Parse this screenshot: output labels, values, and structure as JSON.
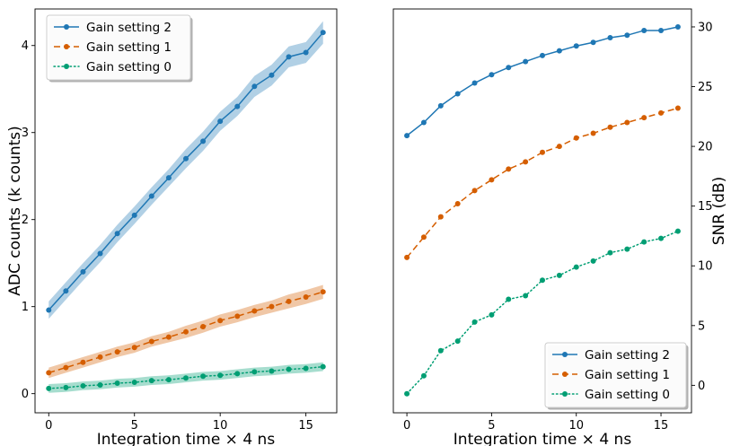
{
  "chart_data": [
    {
      "type": "line",
      "xlabel": "Integration time × 4 ns",
      "ylabel": "ADC counts (k counts)",
      "xlim": [
        -0.8,
        16.8
      ],
      "ylim": [
        -0.22,
        4.42
      ],
      "xticks": [
        0,
        5,
        10,
        15
      ],
      "yticks": [
        0,
        1,
        2,
        3,
        4
      ],
      "legend": "top-left",
      "grid": false,
      "x": [
        0,
        1,
        2,
        3,
        4,
        5,
        6,
        7,
        8,
        9,
        10,
        11,
        12,
        13,
        14,
        15,
        16
      ],
      "series": [
        {
          "name": "Gain setting 2",
          "color": "#1f77b4",
          "linestyle": "solid",
          "values": [
            0.96,
            1.18,
            1.4,
            1.61,
            1.84,
            2.05,
            2.27,
            2.48,
            2.7,
            2.9,
            3.13,
            3.3,
            3.53,
            3.66,
            3.87,
            3.92,
            4.15
          ],
          "band": [
            0.1,
            0.1,
            0.1,
            0.1,
            0.1,
            0.1,
            0.1,
            0.1,
            0.11,
            0.11,
            0.11,
            0.11,
            0.12,
            0.12,
            0.12,
            0.12,
            0.13
          ]
        },
        {
          "name": "Gain setting 1",
          "color": "#d55e00",
          "linestyle": "dashed",
          "values": [
            0.24,
            0.3,
            0.36,
            0.42,
            0.48,
            0.53,
            0.6,
            0.65,
            0.71,
            0.77,
            0.84,
            0.89,
            0.95,
            1.0,
            1.06,
            1.11,
            1.17
          ],
          "band": [
            0.06,
            0.06,
            0.06,
            0.06,
            0.06,
            0.06,
            0.06,
            0.06,
            0.07,
            0.07,
            0.07,
            0.07,
            0.07,
            0.07,
            0.08,
            0.08,
            0.08
          ]
        },
        {
          "name": "Gain setting 0",
          "color": "#009e73",
          "linestyle": "dotted",
          "values": [
            0.06,
            0.07,
            0.09,
            0.1,
            0.12,
            0.13,
            0.15,
            0.16,
            0.18,
            0.2,
            0.21,
            0.23,
            0.25,
            0.26,
            0.28,
            0.29,
            0.31
          ],
          "band": [
            0.05,
            0.05,
            0.05,
            0.05,
            0.05,
            0.05,
            0.05,
            0.05,
            0.05,
            0.05,
            0.05,
            0.05,
            0.05,
            0.05,
            0.05,
            0.05,
            0.05
          ]
        }
      ]
    },
    {
      "type": "line",
      "xlabel": "Integration time × 4 ns",
      "ylabel": "SNR (dB)",
      "xlim": [
        -0.8,
        16.8
      ],
      "ylim": [
        -2.3,
        31.5
      ],
      "xticks": [
        0,
        5,
        10,
        15
      ],
      "yticks": [
        0,
        5,
        10,
        15,
        20,
        25,
        30
      ],
      "legend": "bottom-right",
      "grid": false,
      "x": [
        0,
        1,
        2,
        3,
        4,
        5,
        6,
        7,
        8,
        9,
        10,
        11,
        12,
        13,
        14,
        15,
        16
      ],
      "series": [
        {
          "name": "Gain setting 2",
          "color": "#1f77b4",
          "linestyle": "solid",
          "values": [
            20.9,
            22.0,
            23.4,
            24.4,
            25.3,
            26.0,
            26.6,
            27.1,
            27.6,
            28.0,
            28.4,
            28.7,
            29.1,
            29.3,
            29.7,
            29.7,
            30.0
          ]
        },
        {
          "name": "Gain setting 1",
          "color": "#d55e00",
          "linestyle": "dashed",
          "values": [
            10.7,
            12.4,
            14.1,
            15.2,
            16.3,
            17.2,
            18.1,
            18.7,
            19.5,
            20.0,
            20.7,
            21.1,
            21.6,
            22.0,
            22.4,
            22.8,
            23.2
          ]
        },
        {
          "name": "Gain setting 0",
          "color": "#009e73",
          "linestyle": "dotted",
          "values": [
            -0.7,
            0.8,
            2.9,
            3.7,
            5.3,
            5.9,
            7.2,
            7.5,
            8.8,
            9.2,
            9.9,
            10.4,
            11.1,
            11.4,
            12.0,
            12.3,
            12.9
          ]
        }
      ]
    }
  ]
}
